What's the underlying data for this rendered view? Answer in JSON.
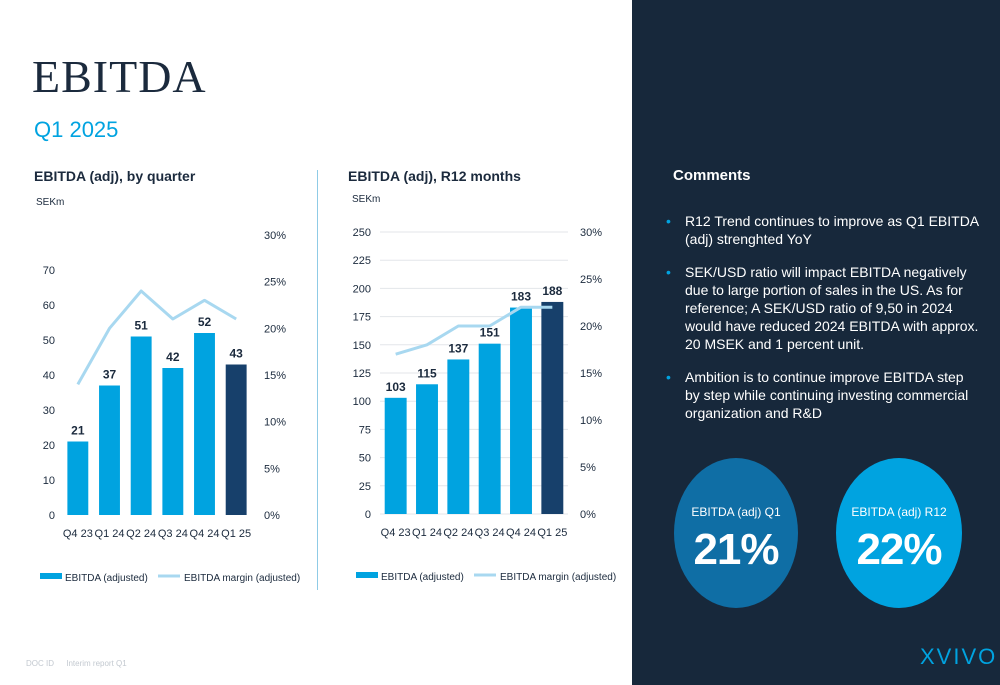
{
  "header": {
    "title": "EBITDA",
    "subtitle": "Q1 2025"
  },
  "chart_data": [
    {
      "type": "bar",
      "title": "EBITDA (adj), by quarter",
      "ylabel": "SEKm",
      "categories": [
        "Q4 23",
        "Q1 24",
        "Q2 24",
        "Q3 24",
        "Q4 24",
        "Q1 25"
      ],
      "series": [
        {
          "name": "EBITDA (adjusted)",
          "type": "bar",
          "axis": "left",
          "values": [
            21,
            37,
            51,
            42,
            52,
            43
          ]
        },
        {
          "name": "EBITDA margin (adjusted)",
          "type": "line",
          "axis": "right",
          "values": [
            14,
            20,
            24,
            21,
            23,
            21
          ]
        }
      ],
      "ylim": [
        0,
        80
      ],
      "y_ticks": [
        "0",
        "10",
        "20",
        "30",
        "40",
        "50",
        "60",
        "70"
      ],
      "y2lim": [
        0,
        30
      ],
      "y2_ticks": [
        "0%",
        "5%",
        "10%",
        "15%",
        "20%",
        "25%",
        "30%"
      ],
      "highlight_last": true,
      "grid": false,
      "legend": "bottom"
    },
    {
      "type": "bar",
      "title": "EBITDA (adj), R12 months",
      "ylabel": "SEKm",
      "categories": [
        "Q4 23",
        "Q1 24",
        "Q2 24",
        "Q3 24",
        "Q4 24",
        "Q1 25"
      ],
      "series": [
        {
          "name": "EBITDA (adjusted)",
          "type": "bar",
          "axis": "left",
          "values": [
            103,
            115,
            137,
            151,
            183,
            188
          ]
        },
        {
          "name": "EBITDA margin (adjusted)",
          "type": "line",
          "axis": "right",
          "values": [
            17,
            18,
            20,
            20,
            22,
            22
          ]
        }
      ],
      "ylim": [
        0,
        250
      ],
      "y_ticks": [
        "0",
        "25",
        "50",
        "75",
        "100",
        "125",
        "150",
        "175",
        "200",
        "225",
        "250"
      ],
      "y2lim": [
        0,
        30
      ],
      "y2_ticks": [
        "0%",
        "5%",
        "10%",
        "15%",
        "20%",
        "25%",
        "30%"
      ],
      "highlight_last": true,
      "grid": true,
      "legend": "bottom"
    }
  ],
  "comments": {
    "title": "Comments",
    "items": [
      "R12 Trend continues to improve as Q1 EBITDA (adj) strenghted YoY",
      "SEK/USD ratio will impact EBITDA negatively due to large portion of sales in the US. As for reference; A SEK/USD ratio of 9,50 in 2024 would have reduced 2024 EBITDA with approx. 20 MSEK and 1 percent unit.",
      "Ambition is to continue improve EBITDA step by step while continuing investing  commercial organization and R&D"
    ]
  },
  "kpis": [
    {
      "label": "EBITDA (adj) Q1",
      "value": "21%",
      "color": "#0f6ea5"
    },
    {
      "label": "EBITDA (adj) R12",
      "value": "22%",
      "color": "#00a3e0"
    }
  ],
  "colors": {
    "bar": "#00a3e0",
    "bar_highlight": "#17406b",
    "line": "#a8d8f0",
    "navy": "#17283b"
  },
  "footer": {
    "doc_id": "DOC ID",
    "doc_name": "Interim report Q1"
  },
  "logo": {
    "text": "XVIVO"
  }
}
